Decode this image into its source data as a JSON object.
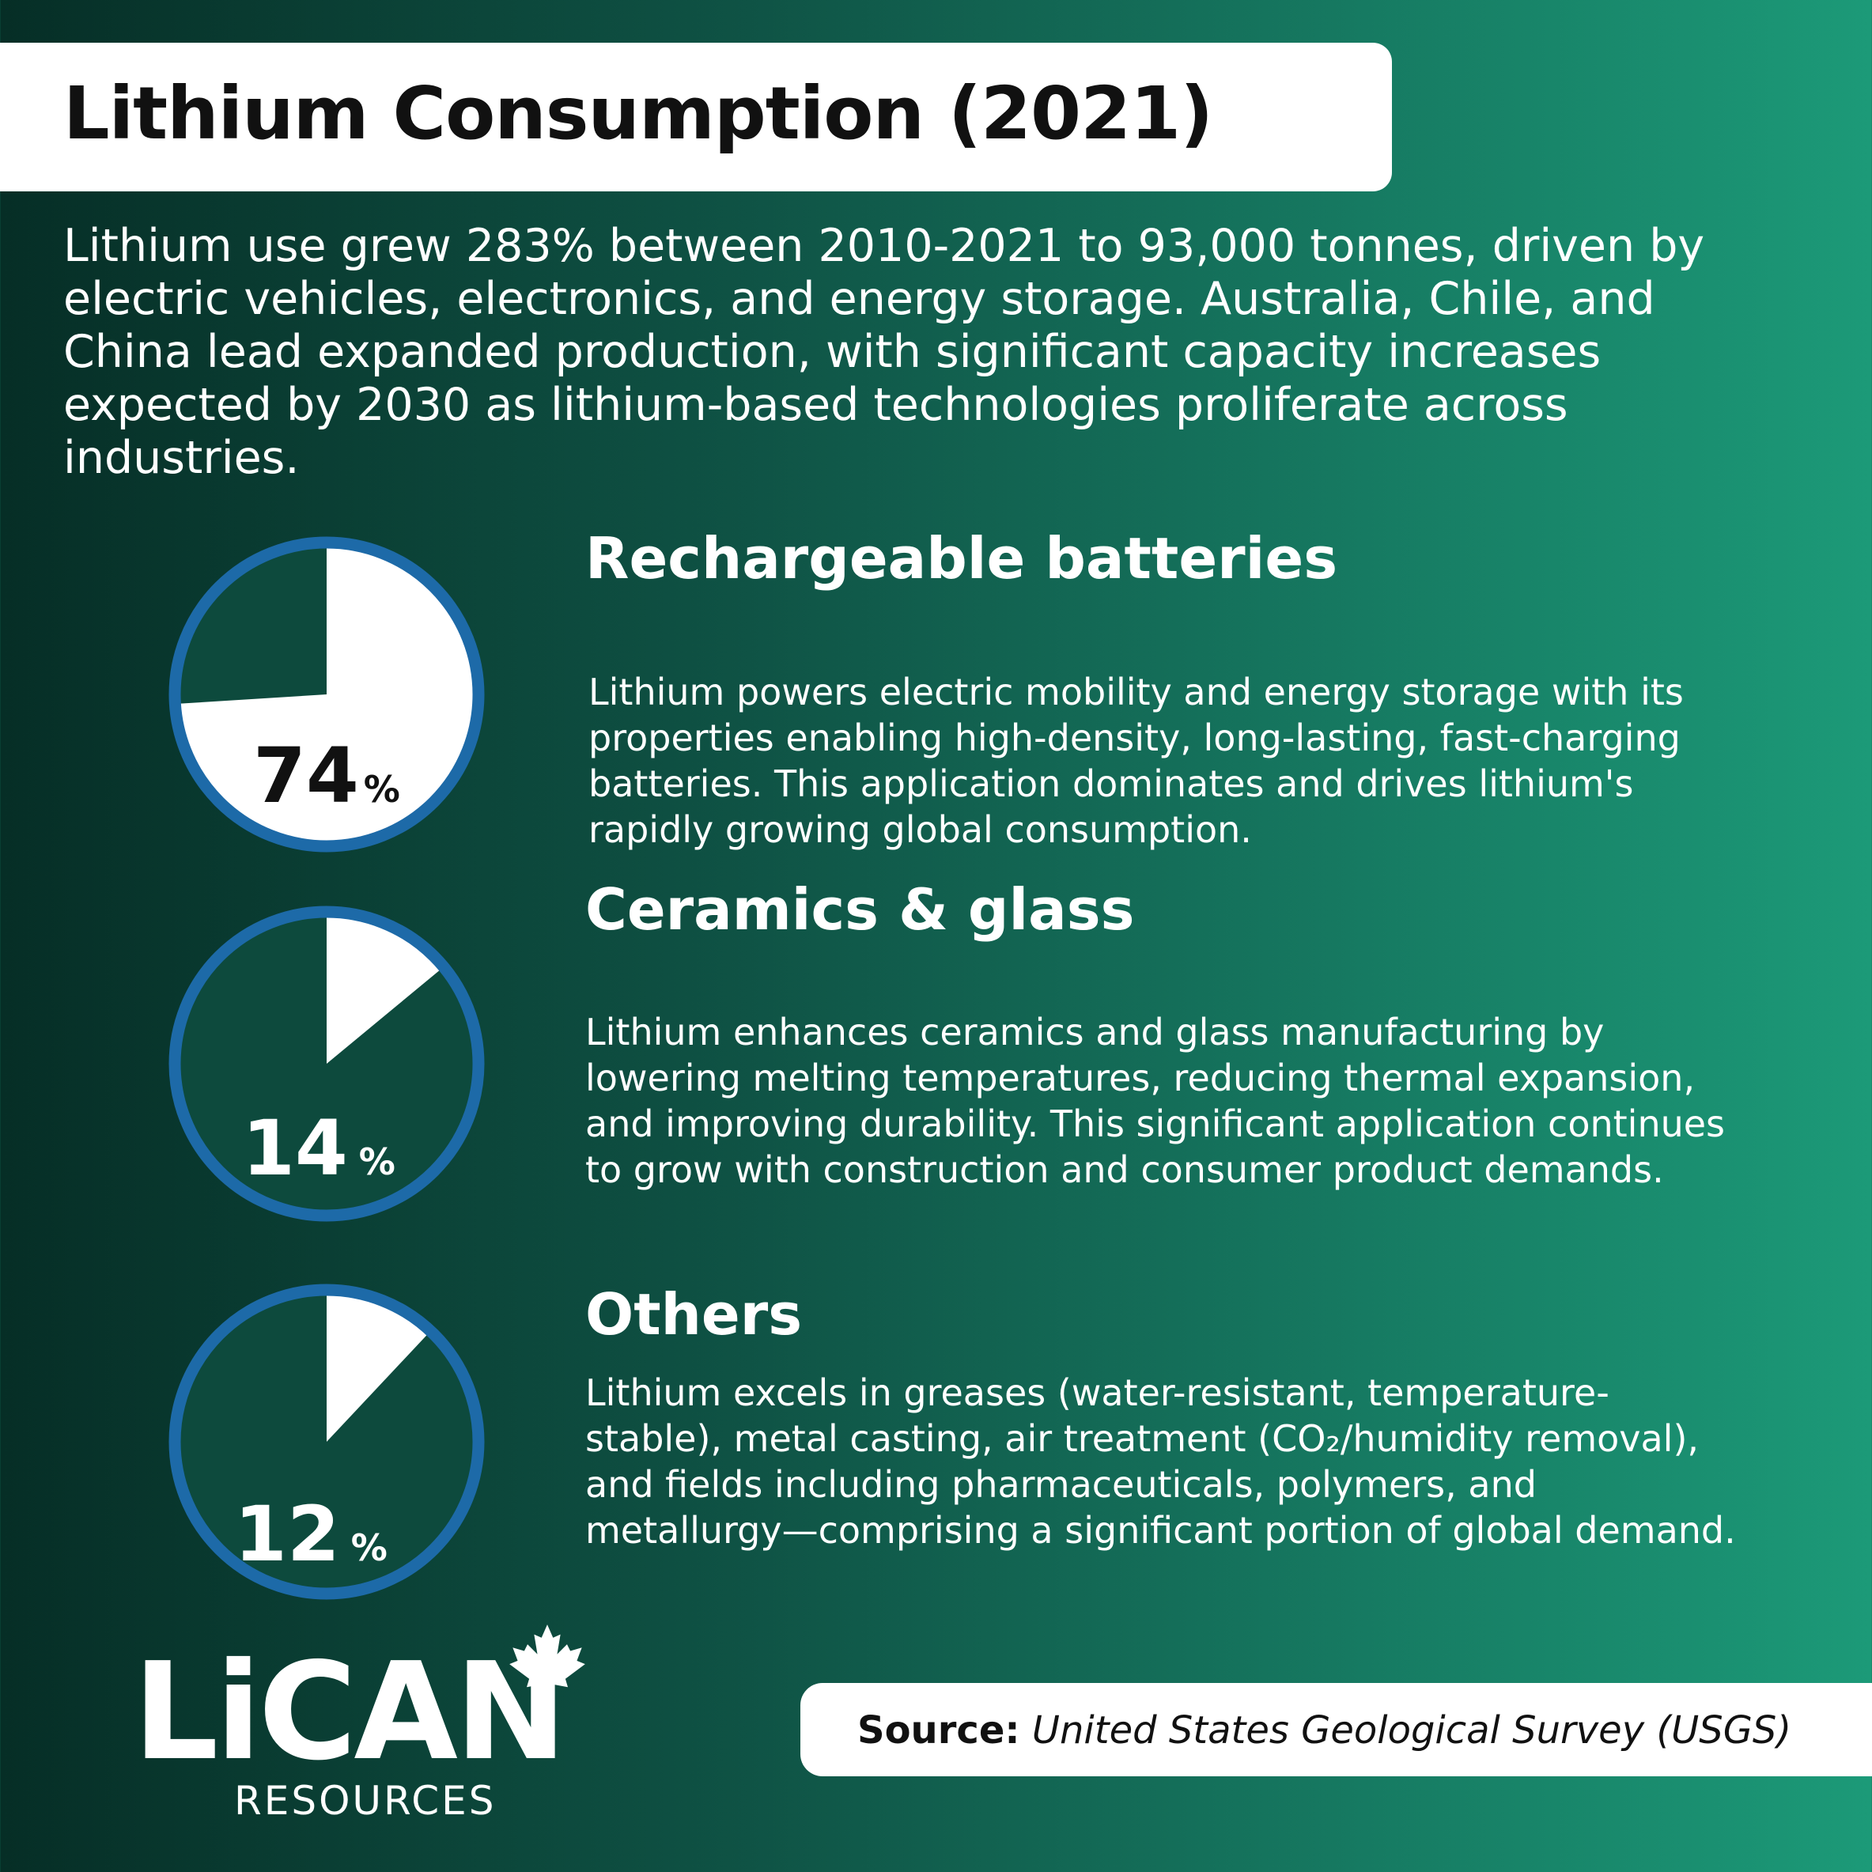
{
  "title": "Lithium Consumption (2021)",
  "intro": "Lithium use grew 283% between 2010-2021 to 93,000 tonnes, driven by electric vehicles, electronics, and energy storage. Australia, Chile, and China lead expanded production, with significant capacity increases expected by 2030 as lithium-based technologies proliferate across industries.",
  "colors": {
    "ring": "#1d6aa8",
    "slice": "#ffffff",
    "pie_background": "#0d4a3d",
    "title_box": "#ffffff"
  },
  "chart_data": {
    "type": "pie",
    "title": "",
    "unit": "%",
    "segments": [
      {
        "name": "Rechargeable batteries",
        "value": 74,
        "description": "Lithium powers electric mobility and energy storage with its properties enabling high-density, long-lasting, fast-charging batteries. This application dominates and drives lithium's rapidly growing global consumption."
      },
      {
        "name": "Ceramics & glass",
        "value": 14,
        "description": "Lithium enhances ceramics and glass manufacturing by lowering melting temperatures, reducing thermal expansion, and improving durability. This significant application continues to grow with construction and consumer product demands."
      },
      {
        "name": "Others",
        "value": 12,
        "description": "Lithium excels in greases (water-resistant, temperature-stable), metal casting, air treatment (CO₂/humidity removal), and fields including pharmaceuticals, polymers, and metallurgy—comprising a significant portion of global demand."
      }
    ]
  },
  "logo": {
    "name": "LiCAN",
    "subtitle": "RESOURCES",
    "icon": "maple-leaf-icon"
  },
  "source": {
    "label": "Source:",
    "value": "United States Geological Survey (USGS)"
  }
}
